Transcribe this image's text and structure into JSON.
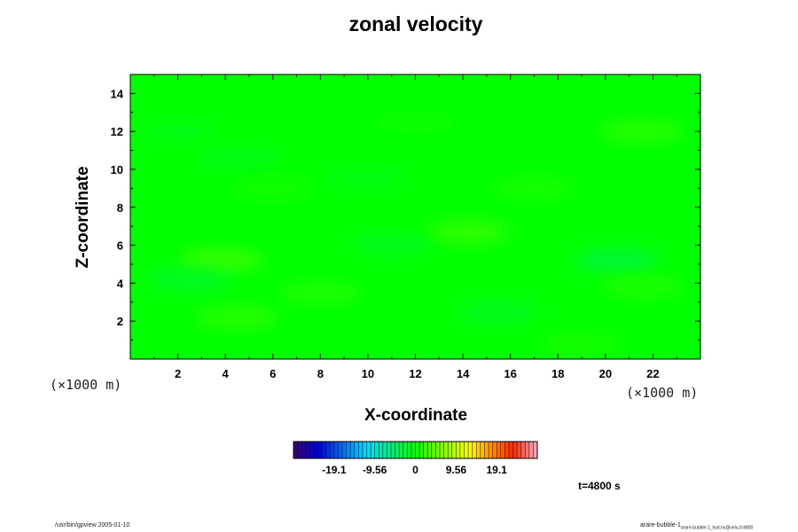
{
  "title": "zonal velocity",
  "chart_data": {
    "type": "heatmap",
    "title": "zonal velocity",
    "xlabel": "X-coordinate",
    "ylabel": "Z-coordinate",
    "x_unit_label": "(×1000 m)",
    "y_unit_label": "(×1000 m)",
    "xlim": [
      0,
      24
    ],
    "ylim": [
      0,
      15
    ],
    "x_ticks": [
      2,
      4,
      6,
      8,
      10,
      12,
      14,
      16,
      18,
      20,
      22
    ],
    "y_ticks": [
      2,
      4,
      6,
      8,
      10,
      12,
      14
    ],
    "colorbar": {
      "tick_labels": [
        "-19.1",
        "-9.56",
        "0",
        "9.56",
        "19.1"
      ],
      "tick_values": [
        -19.1,
        -9.56,
        0,
        9.56,
        19.1
      ],
      "range": [
        -28.65,
        28.65
      ],
      "levels": 60,
      "colormap": "rainbow"
    },
    "field_features": [
      {
        "x": 3.8,
        "z": 5.2,
        "value": 3.5
      },
      {
        "x": 4.5,
        "z": 2.2,
        "value": 2.5
      },
      {
        "x": 4.5,
        "z": 10.6,
        "value": -1.2
      },
      {
        "x": 20.5,
        "z": 5.2,
        "value": -3.2
      },
      {
        "x": 14.2,
        "z": 6.7,
        "value": 3.0
      },
      {
        "x": 21.5,
        "z": 12.0,
        "value": 2.5
      },
      {
        "x": 11.0,
        "z": 6.0,
        "value": -1.5
      },
      {
        "x": 2.0,
        "z": 12.0,
        "value": -1.0
      },
      {
        "x": 21.5,
        "z": 3.8,
        "value": 2.0
      },
      {
        "x": 2.5,
        "z": 4.2,
        "value": -2.0
      },
      {
        "x": 8.0,
        "z": 3.5,
        "value": 2.0
      },
      {
        "x": 17.0,
        "z": 9.0,
        "value": 1.5
      },
      {
        "x": 6.0,
        "z": 9.0,
        "value": 1.2
      },
      {
        "x": 15.5,
        "z": 2.5,
        "value": -1.8
      },
      {
        "x": 10.0,
        "z": 9.5,
        "value": -1.0
      },
      {
        "x": 19.0,
        "z": 0.8,
        "value": 1.5
      },
      {
        "x": 12.0,
        "z": 12.5,
        "value": 0.8
      }
    ]
  },
  "time_label": "t=4800 s",
  "footer": {
    "left": "/usr/bin/gpview 2005-01-10",
    "right_main": "arare-bubble-1",
    "right_sub": "arare-bubble-1_hyd.nc@velu,t=4800"
  }
}
